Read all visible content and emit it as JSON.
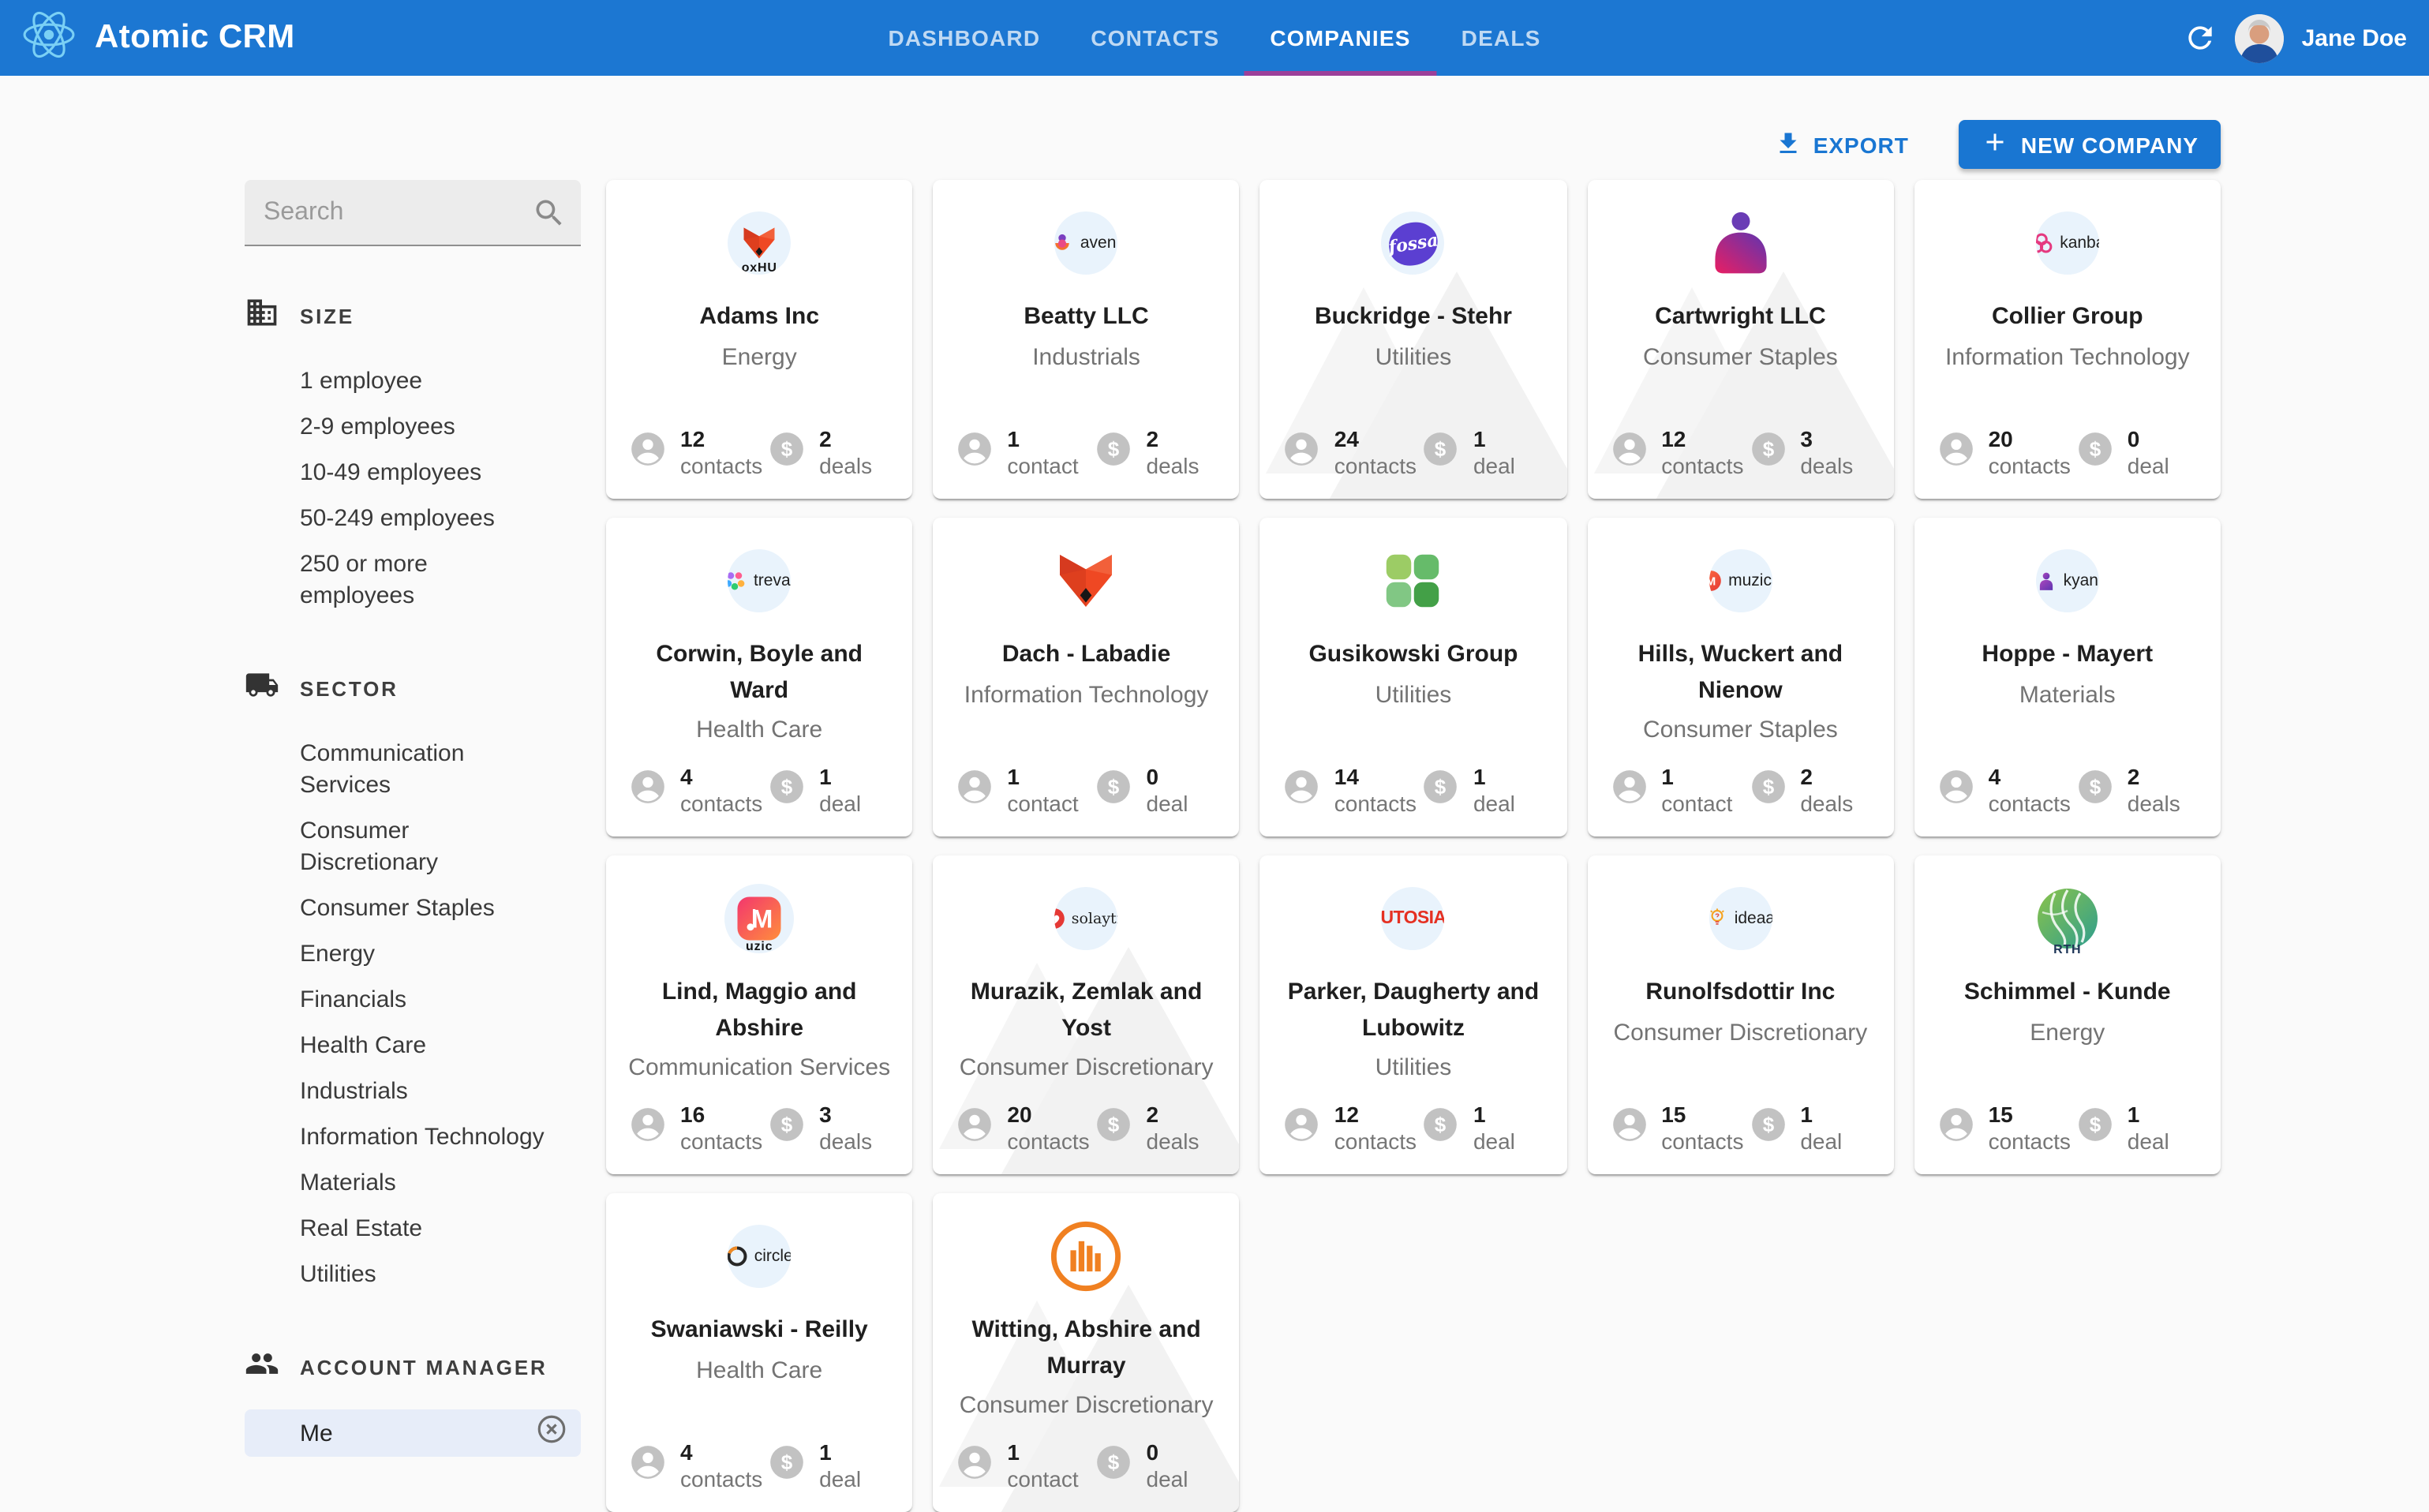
{
  "header": {
    "app_title": "Atomic CRM",
    "tabs": [
      {
        "label": "DASHBOARD",
        "active": false
      },
      {
        "label": "CONTACTS",
        "active": false
      },
      {
        "label": "COMPANIES",
        "active": true
      },
      {
        "label": "DEALS",
        "active": false
      }
    ],
    "user_name": "Jane Doe"
  },
  "toolbar": {
    "export_label": "EXPORT",
    "new_company_label": "NEW COMPANY"
  },
  "sidebar": {
    "search_placeholder": "Search",
    "size": {
      "title": "SIZE",
      "icon": "building-icon",
      "items": [
        "1 employee",
        "2-9 employees",
        "10-49 employees",
        "50-249 employees",
        "250 or more employees"
      ]
    },
    "sector": {
      "title": "SECTOR",
      "icon": "truck-icon",
      "items": [
        "Communication Services",
        "Consumer Discretionary",
        "Consumer Staples",
        "Energy",
        "Financials",
        "Health Care",
        "Industrials",
        "Information Technology",
        "Materials",
        "Real Estate",
        "Utilities"
      ]
    },
    "account_manager": {
      "title": "ACCOUNT MANAGER",
      "icon": "people-icon",
      "selected": "Me"
    }
  },
  "companies": [
    {
      "name": "Adams Inc",
      "sector": "Energy",
      "contacts": "12",
      "contacts_label": "contacts",
      "deals": "2",
      "deals_label": "deals",
      "watermark": false,
      "logo": {
        "kind": "foxhub",
        "caption": "oxHU",
        "color": "#ef4823"
      }
    },
    {
      "name": "Beatty LLC",
      "sector": "Industrials",
      "contacts": "1",
      "contacts_label": "contact",
      "deals": "2",
      "deals_label": "deals",
      "watermark": false,
      "logo": {
        "kind": "aven",
        "text": "aven.",
        "color": "#e94a86"
      }
    },
    {
      "name": "Buckridge - Stehr",
      "sector": "Utilities",
      "contacts": "24",
      "contacts_label": "contacts",
      "deals": "1",
      "deals_label": "deal",
      "watermark": true,
      "logo": {
        "kind": "fossa",
        "text": "fossa",
        "color": "#5b3fd1"
      }
    },
    {
      "name": "Cartwright LLC",
      "sector": "Consumer Staples",
      "contacts": "12",
      "contacts_label": "contacts",
      "deals": "3",
      "deals_label": "deals",
      "watermark": true,
      "logo": {
        "kind": "person-gradient",
        "color": "#e91e63"
      }
    },
    {
      "name": "Collier Group",
      "sector": "Information Technology",
      "contacts": "20",
      "contacts_label": "contacts",
      "deals": "0",
      "deals_label": "deal",
      "watermark": false,
      "logo": {
        "kind": "kanba",
        "text": "kanba",
        "color": "#e5397f"
      }
    },
    {
      "name": "Corwin, Boyle and Ward",
      "sector": "Health Care",
      "contacts": "4",
      "contacts_label": "contacts",
      "deals": "1",
      "deals_label": "deal",
      "watermark": false,
      "logo": {
        "kind": "treva",
        "text": "treva.",
        "color": "#2ecc71"
      }
    },
    {
      "name": "Dach - Labadie",
      "sector": "Information Technology",
      "contacts": "1",
      "contacts_label": "contact",
      "deals": "0",
      "deals_label": "deal",
      "watermark": false,
      "logo": {
        "kind": "fox",
        "color": "#ef4823"
      }
    },
    {
      "name": "Gusikowski Group",
      "sector": "Utilities",
      "contacts": "14",
      "contacts_label": "contacts",
      "deals": "1",
      "deals_label": "deal",
      "watermark": false,
      "logo": {
        "kind": "clover",
        "color": "#43a047"
      }
    },
    {
      "name": "Hills, Wuckert and Nienow",
      "sector": "Consumer Staples",
      "contacts": "1",
      "contacts_label": "contact",
      "deals": "2",
      "deals_label": "deals",
      "watermark": false,
      "logo": {
        "kind": "muzica",
        "text": "muzica",
        "color": "#e53935"
      }
    },
    {
      "name": "Hoppe - Mayert",
      "sector": "Materials",
      "contacts": "4",
      "contacts_label": "contacts",
      "deals": "2",
      "deals_label": "deals",
      "watermark": false,
      "logo": {
        "kind": "kyan",
        "text": "kyan",
        "color": "#5e35b1"
      }
    },
    {
      "name": "Lind, Maggio and Abshire",
      "sector": "Communication Services",
      "contacts": "16",
      "contacts_label": "contacts",
      "deals": "3",
      "deals_label": "deals",
      "watermark": false,
      "logo": {
        "kind": "muzic",
        "caption": "uzic",
        "color": "#f3366e"
      }
    },
    {
      "name": "Murazik, Zemlak and Yost",
      "sector": "Consumer Discretionary",
      "contacts": "20",
      "contacts_label": "contacts",
      "deals": "2",
      "deals_label": "deals",
      "watermark": true,
      "logo": {
        "kind": "solaytic",
        "text": "solaytic",
        "color": "#e53935"
      }
    },
    {
      "name": "Parker, Daugherty and Lubowitz",
      "sector": "Utilities",
      "contacts": "12",
      "contacts_label": "contacts",
      "deals": "1",
      "deals_label": "deal",
      "watermark": false,
      "logo": {
        "kind": "utosia",
        "text": "UTOSIA",
        "color": "#e53022"
      }
    },
    {
      "name": "Runolfsdottir Inc",
      "sector": "Consumer Discretionary",
      "contacts": "15",
      "contacts_label": "contacts",
      "deals": "1",
      "deals_label": "deal",
      "watermark": false,
      "logo": {
        "kind": "ideaa",
        "text": "ideaa",
        "color": "#f6a21d"
      }
    },
    {
      "name": "Schimmel - Kunde",
      "sector": "Energy",
      "contacts": "15",
      "contacts_label": "contacts",
      "deals": "1",
      "deals_label": "deal",
      "watermark": false,
      "logo": {
        "kind": "earth",
        "caption": "RTH",
        "color": "#2e9e8f"
      }
    },
    {
      "name": "Swaniawski - Reilly",
      "sector": "Health Care",
      "contacts": "4",
      "contacts_label": "contacts",
      "deals": "1",
      "deals_label": "deal",
      "watermark": false,
      "logo": {
        "kind": "circle",
        "text": "circle",
        "color": "#f08a24"
      }
    },
    {
      "name": "Witting, Abshire and Murray",
      "sector": "Consumer Discretionary",
      "contacts": "1",
      "contacts_label": "contact",
      "deals": "0",
      "deals_label": "deal",
      "watermark": true,
      "logo": {
        "kind": "bars",
        "color": "#f08021"
      }
    }
  ],
  "colors": {
    "header_bg": "#1c77d2",
    "tab_indicator": "#9c3f99",
    "accent": "#1976d2",
    "page_bg": "#fafafa",
    "card_bg": "#ffffff",
    "chip_bg": "#e7edf9"
  }
}
